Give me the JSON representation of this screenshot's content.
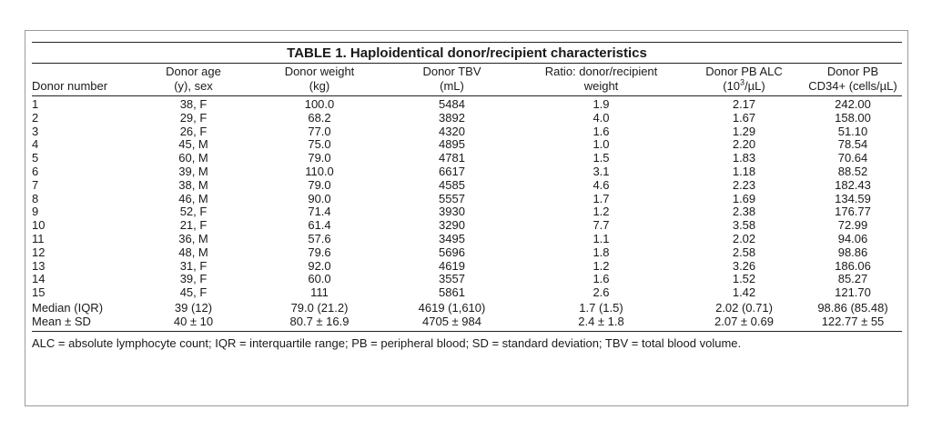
{
  "table": {
    "title": "TABLE 1. Haploidentical donor/recipient characteristics",
    "headers": [
      {
        "line1": "",
        "line2": "Donor number"
      },
      {
        "line1": "Donor age",
        "line2": "(y), sex"
      },
      {
        "line1": "Donor weight",
        "line2": "(kg)"
      },
      {
        "line1": "Donor TBV",
        "line2": "(mL)"
      },
      {
        "line1": "Ratio: donor/recipient",
        "line2": "weight"
      },
      {
        "line1": "Donor PB ALC",
        "line2_pre": "(10",
        "line2_sup": "3",
        "line2_post": "/µL)"
      },
      {
        "line1": "Donor PB",
        "line2": "CD34+ (cells/µL)"
      }
    ],
    "rows": [
      [
        "1",
        "38, F",
        "100.0",
        "5484",
        "1.9",
        "2.17",
        "242.00"
      ],
      [
        "2",
        "29, F",
        "68.2",
        "3892",
        "4.0",
        "1.67",
        "158.00"
      ],
      [
        "3",
        "26, F",
        "77.0",
        "4320",
        "1.6",
        "1.29",
        "51.10"
      ],
      [
        "4",
        "45, M",
        "75.0",
        "4895",
        "1.0",
        "2.20",
        "78.54"
      ],
      [
        "5",
        "60, M",
        "79.0",
        "4781",
        "1.5",
        "1.83",
        "70.64"
      ],
      [
        "6",
        "39, M",
        "110.0",
        "6617",
        "3.1",
        "1.18",
        "88.52"
      ],
      [
        "7",
        "38, M",
        "79.0",
        "4585",
        "4.6",
        "2.23",
        "182.43"
      ],
      [
        "8",
        "46, M",
        "90.0",
        "5557",
        "1.7",
        "1.69",
        "134.59"
      ],
      [
        "9",
        "52, F",
        "71.4",
        "3930",
        "1.2",
        "2.38",
        "176.77"
      ],
      [
        "10",
        "21, F",
        "61.4",
        "3290",
        "7.7",
        "3.58",
        "72.99"
      ],
      [
        "11",
        "36, M",
        "57.6",
        "3495",
        "1.1",
        "2.02",
        "94.06"
      ],
      [
        "12",
        "48, M",
        "79.6",
        "5696",
        "1.8",
        "2.58",
        "98.86"
      ],
      [
        "13",
        "31, F",
        "92.0",
        "4619",
        "1.2",
        "3.26",
        "186.06"
      ],
      [
        "14",
        "39, F",
        "60.0",
        "3557",
        "1.6",
        "1.52",
        "85.27"
      ],
      [
        "15",
        "45, F",
        "111",
        "5861",
        "2.6",
        "1.42",
        "121.70"
      ]
    ],
    "summary": [
      [
        "Median (IQR)",
        "39 (12)",
        "79.0 (21.2)",
        "4619 (1,610)",
        "1.7 (1.5)",
        "2.02 (0.71)",
        "98.86 (85.48)"
      ],
      [
        "Mean ± SD",
        "40 ± 10",
        "80.7 ± 16.9",
        "4705 ± 984",
        "2.4 ± 1.8",
        "2.07 ± 0.69",
        "122.77 ± 55"
      ]
    ],
    "footnote": "ALC = absolute lymphocyte count; IQR = interquartile range; PB = peripheral blood; SD = standard deviation; TBV = total blood volume."
  }
}
